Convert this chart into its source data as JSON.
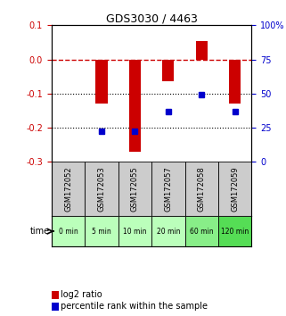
{
  "title": "GDS3030 / 4463",
  "samples": [
    "GSM172052",
    "GSM172053",
    "GSM172055",
    "GSM172057",
    "GSM172058",
    "GSM172059"
  ],
  "time_labels": [
    "0 min",
    "5 min",
    "10 min",
    "20 min",
    "60 min",
    "120 min"
  ],
  "log2_ratio": [
    0.0,
    -0.13,
    -0.27,
    -0.065,
    0.055,
    -0.13
  ],
  "percentile_rank": [
    null,
    22,
    22,
    37,
    49,
    37
  ],
  "bar_color": "#cc0000",
  "dot_color": "#0000cc",
  "ylim_left": [
    -0.3,
    0.1
  ],
  "ylim_right": [
    0,
    100
  ],
  "yticks_left": [
    0.1,
    0.0,
    -0.1,
    -0.2,
    -0.3
  ],
  "yticks_right": [
    100,
    75,
    50,
    25,
    0
  ],
  "dotted_lines": [
    -0.1,
    -0.2
  ],
  "bar_width": 0.35,
  "sample_bg_color": "#cccccc",
  "time_bg_colors": [
    "#bbffbb",
    "#bbffbb",
    "#bbffbb",
    "#bbffbb",
    "#88ee88",
    "#55dd55"
  ],
  "legend_log2_color": "#cc0000",
  "legend_pct_color": "#0000cc"
}
